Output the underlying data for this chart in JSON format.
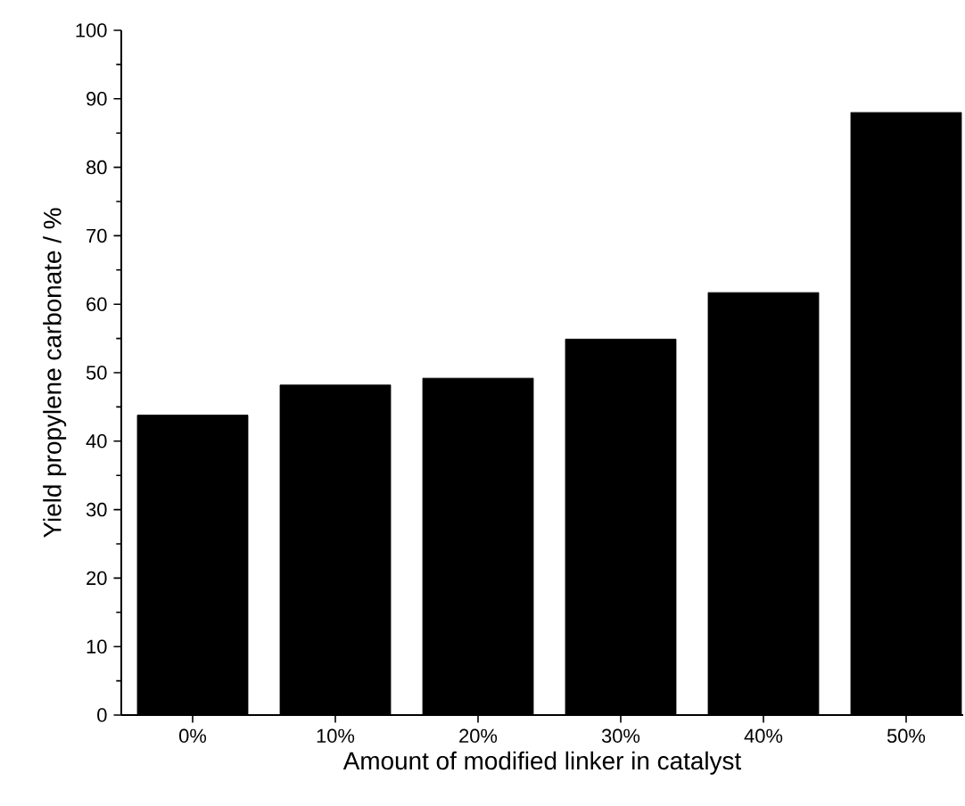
{
  "chart_data": {
    "type": "bar",
    "xlabel": "Amount of modified linker in catalyst",
    "ylabel": "Yield propylene carbonate / %",
    "categories": [
      "0%",
      "10%",
      "20%",
      "30%",
      "40%",
      "50%"
    ],
    "values": [
      43.8,
      48.2,
      49.2,
      54.9,
      61.7,
      88.0
    ],
    "color": "#000000",
    "ylim": [
      0,
      100
    ],
    "yticks": [
      0,
      10,
      20,
      30,
      40,
      50,
      60,
      70,
      80,
      90,
      100
    ],
    "grid": false
  }
}
